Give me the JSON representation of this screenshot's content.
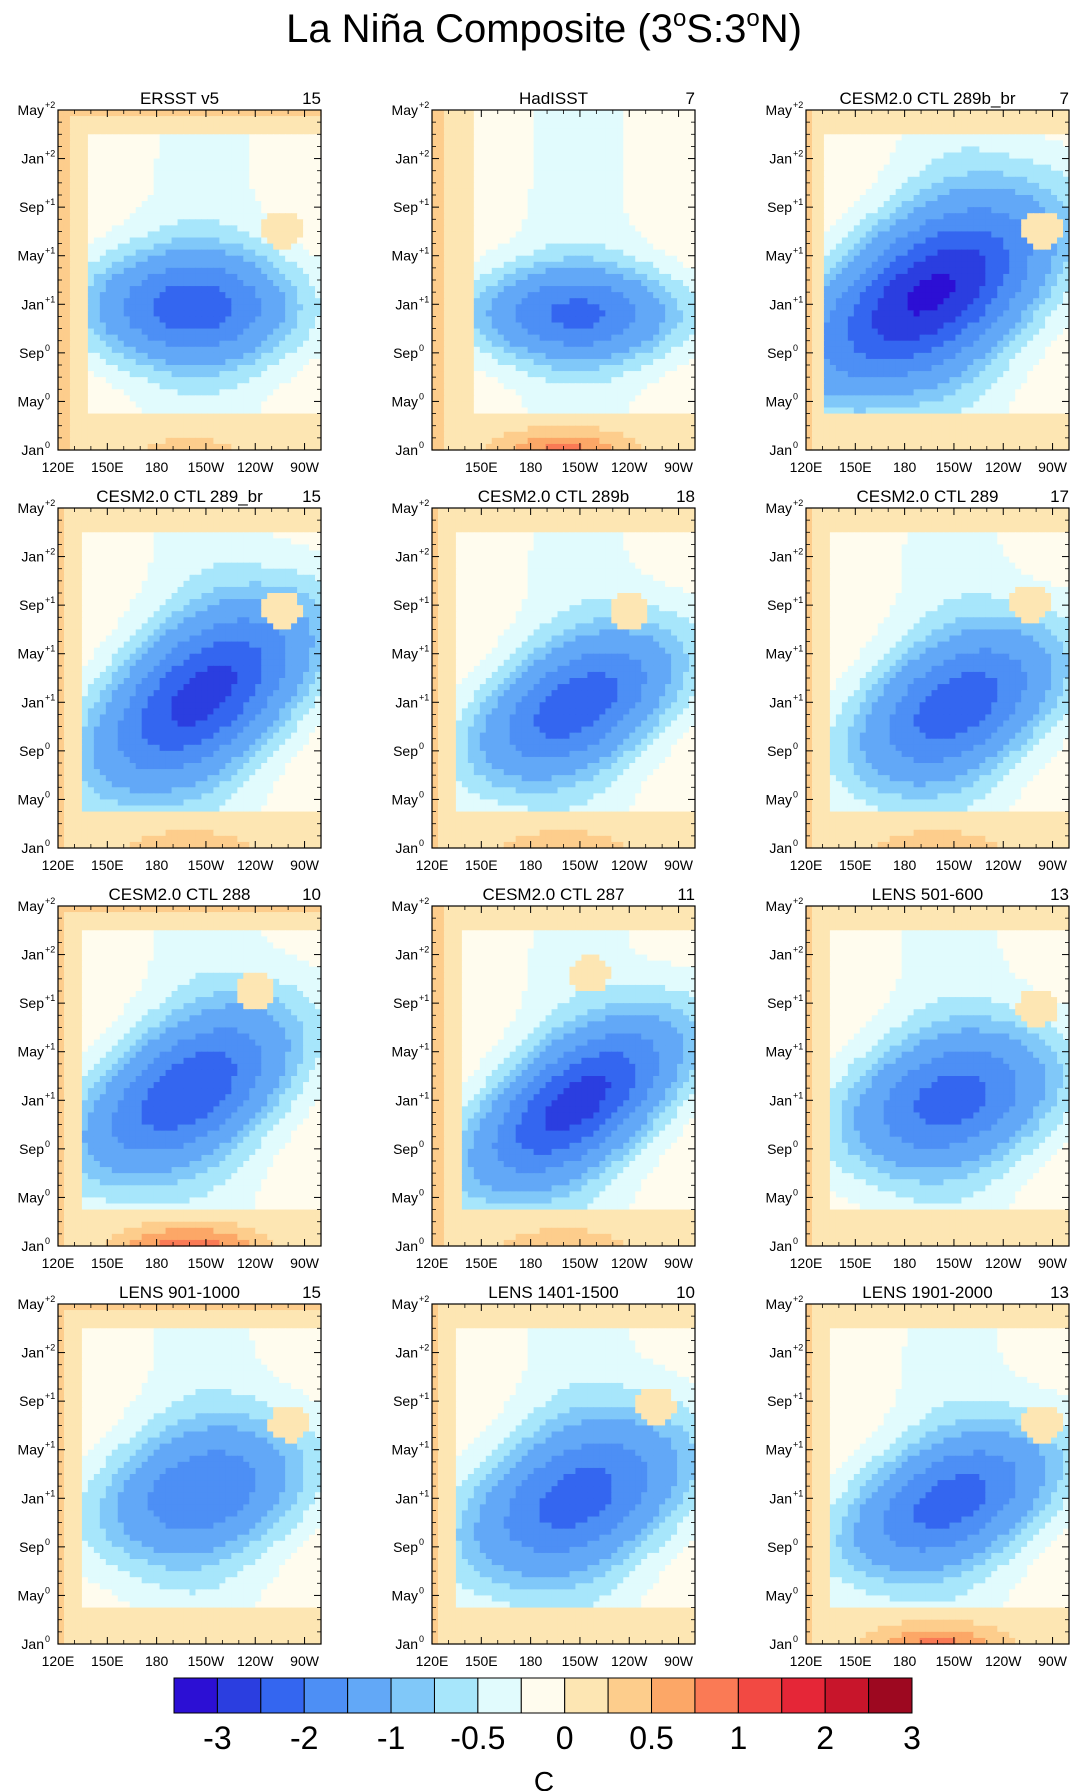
{
  "figure": {
    "title_main": "La Niña Composite (3",
    "title_o1": "o",
    "title_s": "S:3",
    "title_o2": "o",
    "title_n": "N)"
  },
  "y_ticks": [
    {
      "base": "Jan",
      "sup": "0"
    },
    {
      "base": "May",
      "sup": "0"
    },
    {
      "base": "Sep",
      "sup": "0"
    },
    {
      "base": "Jan",
      "sup": "+1"
    },
    {
      "base": "May",
      "sup": "+1"
    },
    {
      "base": "Sep",
      "sup": "+1"
    },
    {
      "base": "Jan",
      "sup": "+2"
    },
    {
      "base": "May",
      "sup": "+2"
    }
  ],
  "x_ticks": [
    "120E",
    "150E",
    "180",
    "150W",
    "120W",
    "90W"
  ],
  "colorbar": {
    "colors": [
      "#2c0fd4",
      "#2b3ee0",
      "#3466f0",
      "#4d8ff5",
      "#62a8f7",
      "#80c8f9",
      "#a7e6fb",
      "#e1fbfd",
      "#fffcee",
      "#fde6b3",
      "#fdcd8c",
      "#fca767",
      "#fa7a55",
      "#f24943",
      "#e52637",
      "#c8152b",
      "#9d0820"
    ],
    "labels": [
      {
        "text": "-3",
        "boundary": 1
      },
      {
        "text": "-2",
        "boundary": 3
      },
      {
        "text": "-1",
        "boundary": 5
      },
      {
        "text": "-0.5",
        "boundary": 7
      },
      {
        "text": "0",
        "boundary": 9
      },
      {
        "text": "0.5",
        "boundary": 11
      },
      {
        "text": "1",
        "boundary": 13
      },
      {
        "text": "2",
        "boundary": 15
      },
      {
        "text": "3",
        "boundary": 17
      }
    ],
    "unit": "C"
  },
  "chart_data": [
    {
      "type": "heatmap",
      "title": "ERSST v5",
      "count": "15",
      "x_ticks_shown": [
        "120E",
        "150E",
        "180",
        "150W",
        "120W",
        "90W"
      ],
      "max_cooling": "-2",
      "axis_y": "Jan0 to May+2",
      "axis_x": "120E to 80W"
    },
    {
      "type": "heatmap",
      "title": "HadISST",
      "count": "7",
      "x_ticks_shown": [
        "150E",
        "180",
        "150W",
        "120W",
        "90W"
      ],
      "max_cooling": "-2",
      "axis_y": "Jan0 to May+2",
      "axis_x": "120E to 80W"
    },
    {
      "type": "heatmap",
      "title": "CESM2.0 CTL 289b_br",
      "count": "7",
      "x_ticks_shown": [
        "120E",
        "150E",
        "180",
        "150W",
        "120W",
        "90W"
      ],
      "max_cooling": "-3",
      "axis_y": "Jan0 to May+2",
      "axis_x": "120E to 80W"
    },
    {
      "type": "heatmap",
      "title": "CESM2.0 CTL 289_br",
      "count": "15",
      "x_ticks_shown": [
        "120E",
        "150E",
        "180",
        "150W",
        "120W",
        "90W"
      ],
      "max_cooling": "-2.5",
      "axis_y": "Jan0 to May+2",
      "axis_x": "120E to 80W"
    },
    {
      "type": "heatmap",
      "title": "CESM2.0 CTL 289b",
      "count": "18",
      "x_ticks_shown": [
        "120E",
        "150E",
        "180",
        "150W",
        "120W",
        "90W"
      ],
      "max_cooling": "-2",
      "axis_y": "Jan0 to May+2",
      "axis_x": "120E to 80W"
    },
    {
      "type": "heatmap",
      "title": "CESM2.0 CTL 289",
      "count": "17",
      "x_ticks_shown": [
        "120E",
        "150E",
        "180",
        "150W",
        "120W",
        "90W"
      ],
      "max_cooling": "-2",
      "axis_y": "Jan0 to May+2",
      "axis_x": "120E to 80W"
    },
    {
      "type": "heatmap",
      "title": "CESM2.0 CTL 288",
      "count": "10",
      "x_ticks_shown": [
        "120E",
        "150E",
        "180",
        "150W",
        "120W",
        "90W"
      ],
      "max_cooling": "-2",
      "axis_y": "Jan0 to May+2",
      "axis_x": "120E to 80W"
    },
    {
      "type": "heatmap",
      "title": "CESM2.0 CTL 287",
      "count": "11",
      "x_ticks_shown": [
        "120E",
        "150E",
        "180",
        "150W",
        "120W",
        "90W"
      ],
      "max_cooling": "-2.5",
      "axis_y": "Jan0 to May+2",
      "axis_x": "120E to 80W"
    },
    {
      "type": "heatmap",
      "title": "LENS 501-600",
      "count": "13",
      "x_ticks_shown": [
        "120E",
        "150E",
        "180",
        "150W",
        "120W",
        "90W"
      ],
      "max_cooling": "-2",
      "axis_y": "Jan0 to May+2",
      "axis_x": "120E to 80W"
    },
    {
      "type": "heatmap",
      "title": "LENS 901-1000",
      "count": "15",
      "x_ticks_shown": [
        "120E",
        "150E",
        "180",
        "150W",
        "120W",
        "90W"
      ],
      "max_cooling": "-1.5",
      "axis_y": "Jan0 to May+2",
      "axis_x": "120E to 80W"
    },
    {
      "type": "heatmap",
      "title": "LENS 1401-1500",
      "count": "10",
      "x_ticks_shown": [
        "120E",
        "150E",
        "180",
        "150W",
        "120W",
        "90W"
      ],
      "max_cooling": "-2",
      "axis_y": "Jan0 to May+2",
      "axis_x": "120E to 80W"
    },
    {
      "type": "heatmap",
      "title": "LENS 1901-2000",
      "count": "13",
      "x_ticks_shown": [
        "120E",
        "150E",
        "180",
        "150W",
        "120W",
        "90W"
      ],
      "max_cooling": "-2",
      "axis_y": "Jan0 to May+2",
      "axis_x": "120E to 80W"
    }
  ]
}
